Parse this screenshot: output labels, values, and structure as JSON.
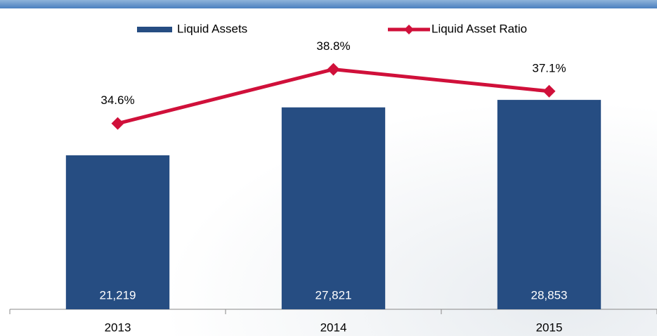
{
  "chart_data": {
    "type": "bar_line",
    "categories": [
      "2013",
      "2014",
      "2015"
    ],
    "series": [
      {
        "name": "Liquid Assets",
        "type": "bar",
        "color": "#264d82",
        "values": [
          21219,
          27821,
          28853
        ],
        "value_labels": [
          "21,219",
          "27,821",
          "28,853"
        ]
      },
      {
        "name": "Liquid Asset Ratio",
        "type": "line",
        "axis": "y2",
        "color": "#d0103a",
        "values": [
          34.6,
          38.8,
          37.1
        ],
        "value_labels": [
          "34.6%",
          "38.8%",
          "37.1%"
        ]
      }
    ],
    "ylim": [
      0,
      40000
    ],
    "y2lim": [
      20.2,
      42.7
    ],
    "legend": "top"
  }
}
